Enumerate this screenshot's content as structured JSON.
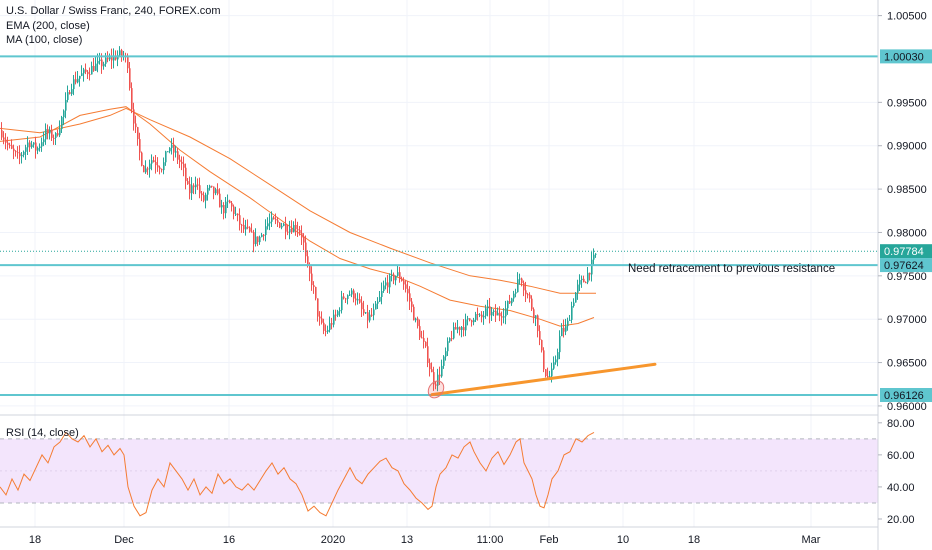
{
  "header": {
    "line1": "U.S. Dollar / Swiss Franc, 240, FOREX.com",
    "line2": "EMA (200, close)",
    "line3": "MA (100, close)"
  },
  "rsi_panel": {
    "label": "RSI (14, close)"
  },
  "annotation": "Need retracement to previous resistance",
  "colors": {
    "up_candle": "#26a69a",
    "down_candle": "#ef5350",
    "ema": "#f57c33",
    "ma": "#f57c33",
    "level_lines": "#5fc6cf",
    "trendline": "#f7962d",
    "rsi_line": "#f57c33",
    "rsi_band_fill": "#f3e5fc",
    "last_price_tag": "#26a69a",
    "level_tag": "#5fc6cf"
  },
  "chart_data": [
    {
      "type": "candlestick",
      "title": "U.S. Dollar / Swiss Franc, 240, FOREX.com",
      "x_tick_labels": [
        "18",
        "Dec",
        "16",
        "2020",
        "13",
        "11:00",
        "Feb",
        "10",
        "18",
        "Mar"
      ],
      "y_tick_labels": [
        "1.00500",
        "0.99500",
        "0.99000",
        "0.98500",
        "0.98000",
        "0.97500",
        "0.97000",
        "0.96500",
        "0.96000"
      ],
      "ylim": [
        0.9593,
        1.0068
      ],
      "grid": true,
      "price_path": [
        [
          0,
          0.9918
        ],
        [
          8,
          0.9898
        ],
        [
          18,
          0.9885
        ],
        [
          28,
          0.9905
        ],
        [
          36,
          0.9895
        ],
        [
          45,
          0.9915
        ],
        [
          55,
          0.991
        ],
        [
          62,
          0.9935
        ],
        [
          70,
          0.997
        ],
        [
          78,
          0.998
        ],
        [
          86,
          0.9985
        ],
        [
          94,
          0.9992
        ],
        [
          102,
          0.9995
        ],
        [
          110,
          1.0
        ],
        [
          118,
          1.0005
        ],
        [
          124,
          1.0003
        ],
        [
          127,
          0.9995
        ],
        [
          131,
          0.9945
        ],
        [
          138,
          0.9895
        ],
        [
          144,
          0.987
        ],
        [
          150,
          0.9885
        ],
        [
          156,
          0.988
        ],
        [
          162,
          0.9875
        ],
        [
          168,
          0.99
        ],
        [
          175,
          0.989
        ],
        [
          182,
          0.9875
        ],
        [
          188,
          0.9845
        ],
        [
          195,
          0.986
        ],
        [
          202,
          0.9835
        ],
        [
          208,
          0.985
        ],
        [
          215,
          0.9845
        ],
        [
          222,
          0.9825
        ],
        [
          228,
          0.9835
        ],
        [
          235,
          0.982
        ],
        [
          241,
          0.9805
        ],
        [
          248,
          0.98
        ],
        [
          254,
          0.979
        ],
        [
          260,
          0.9795
        ],
        [
          266,
          0.981
        ],
        [
          272,
          0.9812
        ],
        [
          280,
          0.981
        ],
        [
          288,
          0.9805
        ],
        [
          296,
          0.9808
        ],
        [
          302,
          0.9795
        ],
        [
          306,
          0.976
        ],
        [
          312,
          0.974
        ],
        [
          318,
          0.97
        ],
        [
          324,
          0.9683
        ],
        [
          330,
          0.9695
        ],
        [
          336,
          0.9705
        ],
        [
          342,
          0.9725
        ],
        [
          348,
          0.973
        ],
        [
          354,
          0.9728
        ],
        [
          360,
          0.9712
        ],
        [
          366,
          0.97
        ],
        [
          372,
          0.9705
        ],
        [
          378,
          0.972
        ],
        [
          384,
          0.974
        ],
        [
          390,
          0.9745
        ],
        [
          396,
          0.9752
        ],
        [
          402,
          0.9745
        ],
        [
          408,
          0.9725
        ],
        [
          414,
          0.97
        ],
        [
          420,
          0.968
        ],
        [
          426,
          0.966
        ],
        [
          430,
          0.964
        ],
        [
          434,
          0.9626
        ],
        [
          438,
          0.9635
        ],
        [
          442,
          0.9648
        ],
        [
          446,
          0.9665
        ],
        [
          450,
          0.968
        ],
        [
          456,
          0.969
        ],
        [
          462,
          0.9692
        ],
        [
          468,
          0.9698
        ],
        [
          474,
          0.9705
        ],
        [
          480,
          0.97
        ],
        [
          486,
          0.971
        ],
        [
          492,
          0.9705
        ],
        [
          498,
          0.9705
        ],
        [
          504,
          0.971
        ],
        [
          510,
          0.9722
        ],
        [
          516,
          0.974
        ],
        [
          520,
          0.975
        ],
        [
          524,
          0.9735
        ],
        [
          528,
          0.9725
        ],
        [
          532,
          0.971
        ],
        [
          536,
          0.97
        ],
        [
          540,
          0.9665
        ],
        [
          544,
          0.964
        ],
        [
          548,
          0.9632
        ],
        [
          552,
          0.964
        ],
        [
          556,
          0.966
        ],
        [
          560,
          0.9685
        ],
        [
          566,
          0.969
        ],
        [
          572,
          0.972
        ],
        [
          578,
          0.974
        ],
        [
          584,
          0.9745
        ],
        [
          590,
          0.976
        ],
        [
          594,
          0.9772
        ],
        [
          597,
          0.9778
        ]
      ],
      "ema_200": [
        [
          0,
          0.992
        ],
        [
          40,
          0.9915
        ],
        [
          80,
          0.9925
        ],
        [
          110,
          0.9935
        ],
        [
          126,
          0.9943
        ],
        [
          150,
          0.993
        ],
        [
          190,
          0.991
        ],
        [
          230,
          0.9885
        ],
        [
          270,
          0.9855
        ],
        [
          310,
          0.9825
        ],
        [
          350,
          0.98
        ],
        [
          390,
          0.9782
        ],
        [
          430,
          0.9765
        ],
        [
          470,
          0.975
        ],
        [
          500,
          0.9745
        ],
        [
          530,
          0.9738
        ],
        [
          560,
          0.973
        ],
        [
          596,
          0.973
        ]
      ],
      "ma_100": [
        [
          0,
          0.9905
        ],
        [
          40,
          0.991
        ],
        [
          80,
          0.9935
        ],
        [
          110,
          0.9942
        ],
        [
          126,
          0.9945
        ],
        [
          150,
          0.9925
        ],
        [
          180,
          0.9895
        ],
        [
          210,
          0.987
        ],
        [
          250,
          0.984
        ],
        [
          280,
          0.9815
        ],
        [
          310,
          0.979
        ],
        [
          340,
          0.977
        ],
        [
          370,
          0.9758
        ],
        [
          390,
          0.9752
        ],
        [
          420,
          0.9738
        ],
        [
          450,
          0.9722
        ],
        [
          480,
          0.9715
        ],
        [
          510,
          0.971
        ],
        [
          540,
          0.97
        ],
        [
          560,
          0.9692
        ],
        [
          578,
          0.9695
        ],
        [
          594,
          0.9702
        ]
      ],
      "horizontal_levels": [
        1.0003,
        0.97624,
        0.96126
      ],
      "price_tags": [
        {
          "label": "1.00030",
          "value": 1.0003,
          "kind": "level"
        },
        {
          "label": "0.97784",
          "value": 0.97784,
          "kind": "last"
        },
        {
          "label": "0.97624",
          "value": 0.97624,
          "kind": "level"
        },
        {
          "label": "0.96126",
          "value": 0.96126,
          "kind": "level"
        }
      ],
      "last_price": 0.97784,
      "trendline": [
        [
          432,
          0.9613
        ],
        [
          655,
          0.9648
        ]
      ],
      "marked_low": [
        436,
        0.9619
      ],
      "annotation": "Need retracement to previous resistance"
    },
    {
      "type": "line",
      "title": "RSI (14, close)",
      "y_tick_labels": [
        "80.00",
        "60.00",
        "40.00",
        "20.00"
      ],
      "ylim": [
        15,
        83
      ],
      "band": [
        30,
        70
      ],
      "values": [
        [
          0,
          40
        ],
        [
          6,
          35
        ],
        [
          12,
          45
        ],
        [
          18,
          38
        ],
        [
          24,
          48
        ],
        [
          30,
          44
        ],
        [
          36,
          52
        ],
        [
          42,
          60
        ],
        [
          48,
          55
        ],
        [
          54,
          65
        ],
        [
          60,
          68
        ],
        [
          66,
          74
        ],
        [
          72,
          70
        ],
        [
          78,
          68
        ],
        [
          84,
          72
        ],
        [
          90,
          65
        ],
        [
          96,
          70
        ],
        [
          102,
          62
        ],
        [
          108,
          66
        ],
        [
          114,
          60
        ],
        [
          120,
          64
        ],
        [
          124,
          60
        ],
        [
          128,
          40
        ],
        [
          134,
          28
        ],
        [
          140,
          22
        ],
        [
          146,
          24
        ],
        [
          152,
          38
        ],
        [
          158,
          45
        ],
        [
          164,
          40
        ],
        [
          170,
          55
        ],
        [
          176,
          50
        ],
        [
          182,
          45
        ],
        [
          188,
          38
        ],
        [
          194,
          45
        ],
        [
          200,
          35
        ],
        [
          206,
          40
        ],
        [
          212,
          36
        ],
        [
          218,
          48
        ],
        [
          224,
          42
        ],
        [
          230,
          45
        ],
        [
          236,
          40
        ],
        [
          242,
          38
        ],
        [
          248,
          42
        ],
        [
          254,
          38
        ],
        [
          260,
          44
        ],
        [
          266,
          50
        ],
        [
          272,
          55
        ],
        [
          278,
          48
        ],
        [
          284,
          52
        ],
        [
          290,
          45
        ],
        [
          296,
          42
        ],
        [
          302,
          35
        ],
        [
          308,
          25
        ],
        [
          314,
          28
        ],
        [
          320,
          24
        ],
        [
          326,
          22
        ],
        [
          332,
          30
        ],
        [
          338,
          38
        ],
        [
          344,
          45
        ],
        [
          350,
          52
        ],
        [
          356,
          45
        ],
        [
          362,
          42
        ],
        [
          368,
          48
        ],
        [
          374,
          52
        ],
        [
          380,
          56
        ],
        [
          386,
          58
        ],
        [
          392,
          52
        ],
        [
          398,
          50
        ],
        [
          404,
          42
        ],
        [
          410,
          38
        ],
        [
          416,
          33
        ],
        [
          422,
          30
        ],
        [
          428,
          26
        ],
        [
          432,
          28
        ],
        [
          436,
          40
        ],
        [
          440,
          48
        ],
        [
          446,
          52
        ],
        [
          452,
          60
        ],
        [
          458,
          58
        ],
        [
          464,
          65
        ],
        [
          470,
          68
        ],
        [
          474,
          62
        ],
        [
          480,
          55
        ],
        [
          486,
          50
        ],
        [
          492,
          58
        ],
        [
          498,
          62
        ],
        [
          504,
          54
        ],
        [
          510,
          60
        ],
        [
          516,
          68
        ],
        [
          520,
          70
        ],
        [
          524,
          55
        ],
        [
          528,
          50
        ],
        [
          532,
          45
        ],
        [
          536,
          35
        ],
        [
          540,
          28
        ],
        [
          544,
          27
        ],
        [
          548,
          35
        ],
        [
          552,
          45
        ],
        [
          558,
          50
        ],
        [
          564,
          60
        ],
        [
          570,
          62
        ],
        [
          576,
          70
        ],
        [
          582,
          68
        ],
        [
          588,
          72
        ],
        [
          594,
          74
        ]
      ]
    }
  ]
}
